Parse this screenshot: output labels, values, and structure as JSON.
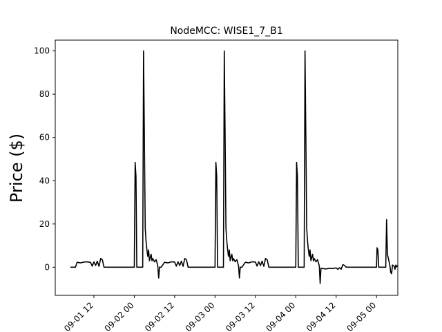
{
  "chart_data": {
    "type": "line",
    "title": "NodeMCC: WISE1_7_B1",
    "xlabel": "",
    "ylabel": "Price ($)",
    "x_type": "datetime",
    "xlim": [
      "2016-09-01 00:30",
      "2016-09-05 06:20"
    ],
    "ylim": [
      -13,
      105
    ],
    "grid": false,
    "x_ticks": [
      {
        "x": "2016-09-01 12:00",
        "label": "09-01 12"
      },
      {
        "x": "2016-09-02 00:00",
        "label": "09-02 00"
      },
      {
        "x": "2016-09-02 12:00",
        "label": "09-02 12"
      },
      {
        "x": "2016-09-03 00:00",
        "label": "09-03 00"
      },
      {
        "x": "2016-09-03 12:00",
        "label": "09-03 12"
      },
      {
        "x": "2016-09-04 00:00",
        "label": "09-04 00"
      },
      {
        "x": "2016-09-04 12:00",
        "label": "09-04 12"
      },
      {
        "x": "2016-09-05 00:00",
        "label": "09-05 00"
      }
    ],
    "y_ticks": [
      {
        "y": 0,
        "label": "0"
      },
      {
        "y": 20,
        "label": "20"
      },
      {
        "y": 40,
        "label": "40"
      },
      {
        "y": 60,
        "label": "60"
      },
      {
        "y": 80,
        "label": "80"
      },
      {
        "y": 100,
        "label": "100"
      }
    ],
    "series": [
      {
        "color": "#000000",
        "points": [
          [
            "2016-09-01 05:00",
            0
          ],
          [
            "2016-09-01 06:30",
            0
          ],
          [
            "2016-09-01 07:00",
            2.3
          ],
          [
            "2016-09-01 08:00",
            2.0
          ],
          [
            "2016-09-01 09:00",
            2.4
          ],
          [
            "2016-09-01 10:00",
            2.5
          ],
          [
            "2016-09-01 11:00",
            2.2
          ],
          [
            "2016-09-01 11:30",
            0.5
          ],
          [
            "2016-09-01 12:00",
            2.5
          ],
          [
            "2016-09-01 12:30",
            0.8
          ],
          [
            "2016-09-01 13:00",
            2.8
          ],
          [
            "2016-09-01 13:30",
            0.4
          ],
          [
            "2016-09-01 14:00",
            4.0
          ],
          [
            "2016-09-01 14:30",
            3.5
          ],
          [
            "2016-09-01 15:00",
            0
          ],
          [
            "2016-09-02 00:00",
            0
          ],
          [
            "2016-09-02 00:15",
            48.5
          ],
          [
            "2016-09-02 00:30",
            42
          ],
          [
            "2016-09-02 00:45",
            0
          ],
          [
            "2016-09-02 02:30",
            0
          ],
          [
            "2016-09-02 02:45",
            100
          ],
          [
            "2016-09-02 03:00",
            60
          ],
          [
            "2016-09-02 03:15",
            18
          ],
          [
            "2016-09-02 03:30",
            12
          ],
          [
            "2016-09-02 03:45",
            8
          ],
          [
            "2016-09-02 04:00",
            5
          ],
          [
            "2016-09-02 04:15",
            8
          ],
          [
            "2016-09-02 04:30",
            3
          ],
          [
            "2016-09-02 05:00",
            6
          ],
          [
            "2016-09-02 05:15",
            3
          ],
          [
            "2016-09-02 05:30",
            4
          ],
          [
            "2016-09-02 06:00",
            2.5
          ],
          [
            "2016-09-02 06:30",
            3.5
          ],
          [
            "2016-09-02 07:00",
            0.5
          ],
          [
            "2016-09-02 07:15",
            -5
          ],
          [
            "2016-09-02 07:30",
            0
          ],
          [
            "2016-09-02 08:00",
            0
          ],
          [
            "2016-09-02 09:00",
            2.3
          ],
          [
            "2016-09-02 10:00",
            2.0
          ],
          [
            "2016-09-02 11:00",
            2.5
          ],
          [
            "2016-09-02 12:00",
            2.4
          ],
          [
            "2016-09-02 12:30",
            0.5
          ],
          [
            "2016-09-02 13:00",
            2.5
          ],
          [
            "2016-09-02 13:30",
            0.8
          ],
          [
            "2016-09-02 14:00",
            2.8
          ],
          [
            "2016-09-02 14:30",
            0.4
          ],
          [
            "2016-09-02 15:00",
            4.0
          ],
          [
            "2016-09-02 15:30",
            3.5
          ],
          [
            "2016-09-02 16:00",
            0
          ],
          [
            "2016-09-03 00:00",
            0
          ],
          [
            "2016-09-03 00:15",
            48.5
          ],
          [
            "2016-09-03 00:30",
            42
          ],
          [
            "2016-09-03 00:45",
            0
          ],
          [
            "2016-09-03 02:30",
            0
          ],
          [
            "2016-09-03 02:45",
            100
          ],
          [
            "2016-09-03 03:00",
            60
          ],
          [
            "2016-09-03 03:15",
            18
          ],
          [
            "2016-09-03 03:30",
            12
          ],
          [
            "2016-09-03 03:45",
            8
          ],
          [
            "2016-09-03 04:00",
            5
          ],
          [
            "2016-09-03 04:15",
            8
          ],
          [
            "2016-09-03 04:30",
            3
          ],
          [
            "2016-09-03 05:00",
            6
          ],
          [
            "2016-09-03 05:15",
            3
          ],
          [
            "2016-09-03 05:30",
            4
          ],
          [
            "2016-09-03 06:00",
            2.5
          ],
          [
            "2016-09-03 06:30",
            3.5
          ],
          [
            "2016-09-03 07:00",
            0.5
          ],
          [
            "2016-09-03 07:15",
            -5
          ],
          [
            "2016-09-03 07:30",
            0
          ],
          [
            "2016-09-03 08:00",
            0
          ],
          [
            "2016-09-03 09:00",
            2.3
          ],
          [
            "2016-09-03 10:00",
            2.0
          ],
          [
            "2016-09-03 11:00",
            2.5
          ],
          [
            "2016-09-03 12:00",
            2.4
          ],
          [
            "2016-09-03 12:30",
            0.5
          ],
          [
            "2016-09-03 13:00",
            2.5
          ],
          [
            "2016-09-03 13:30",
            0.8
          ],
          [
            "2016-09-03 14:00",
            2.8
          ],
          [
            "2016-09-03 14:30",
            0.4
          ],
          [
            "2016-09-03 15:00",
            4.0
          ],
          [
            "2016-09-03 15:30",
            3.5
          ],
          [
            "2016-09-03 16:00",
            0
          ],
          [
            "2016-09-04 00:00",
            0
          ],
          [
            "2016-09-04 00:15",
            48.5
          ],
          [
            "2016-09-04 00:30",
            42
          ],
          [
            "2016-09-04 00:45",
            0
          ],
          [
            "2016-09-04 02:30",
            0
          ],
          [
            "2016-09-04 02:45",
            100
          ],
          [
            "2016-09-04 03:00",
            60
          ],
          [
            "2016-09-04 03:15",
            18
          ],
          [
            "2016-09-04 03:30",
            12
          ],
          [
            "2016-09-04 03:45",
            8
          ],
          [
            "2016-09-04 04:00",
            5
          ],
          [
            "2016-09-04 04:15",
            8
          ],
          [
            "2016-09-04 04:30",
            3
          ],
          [
            "2016-09-04 05:00",
            6
          ],
          [
            "2016-09-04 05:15",
            3
          ],
          [
            "2016-09-04 05:30",
            4
          ],
          [
            "2016-09-04 06:00",
            2.5
          ],
          [
            "2016-09-04 06:30",
            3.5
          ],
          [
            "2016-09-04 07:00",
            0.5
          ],
          [
            "2016-09-04 07:15",
            -7.5
          ],
          [
            "2016-09-04 07:30",
            -0.5
          ],
          [
            "2016-09-04 09:00",
            -0.8
          ],
          [
            "2016-09-04 10:00",
            -0.5
          ],
          [
            "2016-09-04 11:00",
            -0.6
          ],
          [
            "2016-09-04 12:00",
            -0.3
          ],
          [
            "2016-09-04 12:30",
            -1.0
          ],
          [
            "2016-09-04 13:00",
            -0.2
          ],
          [
            "2016-09-04 13:30",
            -0.9
          ],
          [
            "2016-09-04 14:00",
            1.2
          ],
          [
            "2016-09-04 14:30",
            0.8
          ],
          [
            "2016-09-04 15:00",
            0
          ],
          [
            "2016-09-04 23:30",
            0
          ],
          [
            "2016-09-05 00:00",
            0
          ],
          [
            "2016-09-05 00:10",
            9
          ],
          [
            "2016-09-05 00:25",
            8
          ],
          [
            "2016-09-05 00:40",
            0
          ],
          [
            "2016-09-05 02:45",
            0
          ],
          [
            "2016-09-05 03:00",
            22
          ],
          [
            "2016-09-05 03:15",
            6
          ],
          [
            "2016-09-05 03:45",
            2.5
          ],
          [
            "2016-09-05 04:00",
            0.5
          ],
          [
            "2016-09-05 04:15",
            -2.5
          ],
          [
            "2016-09-05 04:30",
            -3
          ],
          [
            "2016-09-05 04:45",
            1.0
          ],
          [
            "2016-09-05 05:15",
            0.5
          ],
          [
            "2016-09-05 05:30",
            -1
          ],
          [
            "2016-09-05 05:45",
            1.0
          ],
          [
            "2016-09-05 06:00",
            0.2
          ],
          [
            "2016-09-05 06:15",
            0.8
          ]
        ]
      }
    ]
  }
}
